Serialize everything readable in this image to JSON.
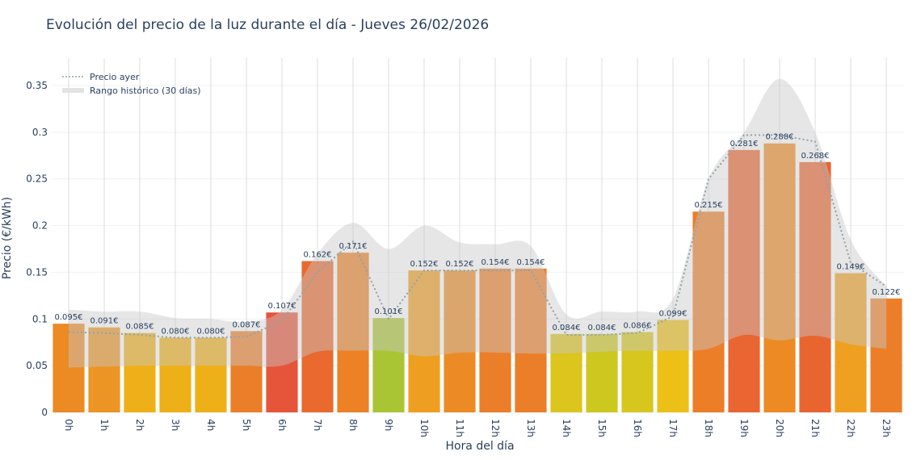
{
  "title": "Evolución del precio de la luz durante el día - Jueves 26/02/2026",
  "chart_data": {
    "type": "bar",
    "title": "Evolución del precio de la luz durante el día - Jueves 26/02/2026",
    "xlabel": "Hora del día",
    "ylabel": "Precio (€/kWh)",
    "ylim": [
      0,
      0.375
    ],
    "yticks": [
      "0",
      "0.05",
      "0.1",
      "0.15",
      "0.2",
      "0.25",
      "0.3",
      "0.35"
    ],
    "grid": true,
    "legend_position": "top-left",
    "categories": [
      "0h",
      "1h",
      "2h",
      "3h",
      "4h",
      "5h",
      "6h",
      "7h",
      "8h",
      "9h",
      "10h",
      "11h",
      "12h",
      "13h",
      "14h",
      "15h",
      "16h",
      "17h",
      "18h",
      "19h",
      "20h",
      "21h",
      "22h",
      "23h"
    ],
    "values": [
      0.095,
      0.091,
      0.085,
      0.08,
      0.08,
      0.087,
      0.107,
      0.162,
      0.171,
      0.101,
      0.152,
      0.152,
      0.154,
      0.154,
      0.084,
      0.084,
      0.086,
      0.099,
      0.215,
      0.281,
      0.288,
      0.268,
      0.149,
      0.122
    ],
    "data_labels": [
      "0.095€",
      "0.091€",
      "0.085€",
      "0.080€",
      "0.080€",
      "0.087€",
      "0.107€",
      "0.162€",
      "0.171€",
      "0.101€",
      "0.152€",
      "0.152€",
      "0.154€",
      "0.154€",
      "0.084€",
      "0.084€",
      "0.086€",
      "0.099€",
      "0.215€",
      "0.281€",
      "0.288€",
      "0.268€",
      "0.149€",
      "0.122€"
    ],
    "bar_colors": [
      "#ec8a23",
      "#ec9424",
      "#eeb018",
      "#eeb018",
      "#eeb018",
      "#eb7e28",
      "#e6553a",
      "#e9692f",
      "#ec8125",
      "#a9c534",
      "#ee9e20",
      "#ec8b25",
      "#eb7e28",
      "#eb7e28",
      "#dcc51c",
      "#cdc81f",
      "#d6c61d",
      "#ecc017",
      "#ec7e28",
      "#e96531",
      "#ed8a24",
      "#e96530",
      "#efa021",
      "#ec7e28"
    ],
    "series": [
      {
        "name": "Precio ayer",
        "type": "line",
        "style": "dotted",
        "color": "#8fa3a8",
        "values": [
          0.086,
          0.085,
          0.083,
          0.08,
          0.08,
          0.081,
          0.098,
          0.15,
          0.183,
          0.1,
          0.152,
          0.152,
          0.152,
          0.152,
          0.083,
          0.083,
          0.085,
          0.103,
          0.25,
          0.297,
          0.297,
          0.29,
          0.16,
          0.135
        ]
      },
      {
        "name": "Rango histórico (30 días)",
        "type": "band",
        "color": "#d9d9d9",
        "lower": [
          0.048,
          0.049,
          0.05,
          0.05,
          0.05,
          0.05,
          0.05,
          0.065,
          0.066,
          0.066,
          0.06,
          0.064,
          0.064,
          0.063,
          0.063,
          0.065,
          0.066,
          0.066,
          0.068,
          0.083,
          0.077,
          0.082,
          0.073,
          0.068
        ],
        "upper": [
          0.11,
          0.108,
          0.108,
          0.101,
          0.1,
          0.097,
          0.11,
          0.17,
          0.203,
          0.175,
          0.2,
          0.182,
          0.18,
          0.178,
          0.105,
          0.108,
          0.108,
          0.122,
          0.25,
          0.3,
          0.357,
          0.3,
          0.185,
          0.135
        ]
      }
    ]
  }
}
